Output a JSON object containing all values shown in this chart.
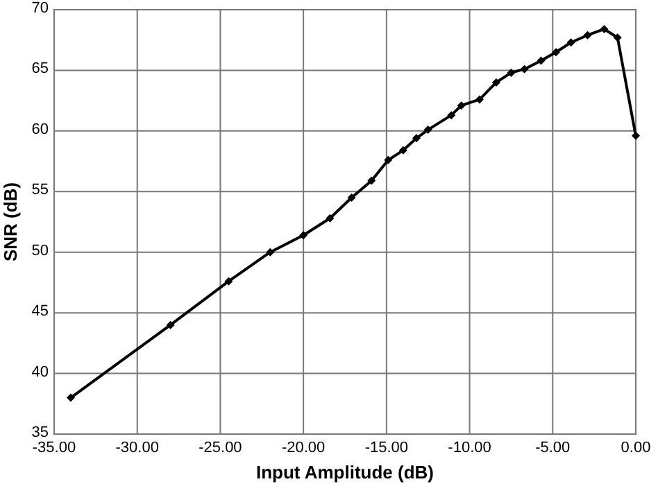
{
  "chart_data": {
    "type": "line",
    "xlabel": "Input Amplitude (dB)",
    "ylabel": "SNR (dB)",
    "x": [
      -34.0,
      -28.0,
      -24.5,
      -22.0,
      -20.0,
      -18.4,
      -17.1,
      -15.9,
      -14.9,
      -14.0,
      -13.2,
      -12.5,
      -11.1,
      -10.5,
      -9.4,
      -8.4,
      -7.5,
      -6.7,
      -5.7,
      -4.8,
      -3.9,
      -2.9,
      -1.9,
      -1.1,
      0.0
    ],
    "series": [
      {
        "color": "#000000",
        "values": [
          38.0,
          44.0,
          47.6,
          50.0,
          51.4,
          52.8,
          54.5,
          55.9,
          57.6,
          58.4,
          59.4,
          60.1,
          61.3,
          62.1,
          62.6,
          64.0,
          64.8,
          65.1,
          65.8,
          66.5,
          67.3,
          67.9,
          68.4,
          67.7,
          59.6
        ]
      }
    ],
    "xlim": [
      -35,
      0
    ],
    "ylim": [
      35,
      70
    ],
    "xticks": [
      {
        "value": -35,
        "label": "-35.00"
      },
      {
        "value": -30,
        "label": "-30.00"
      },
      {
        "value": -25,
        "label": "-25.00"
      },
      {
        "value": -20,
        "label": "-20.00"
      },
      {
        "value": -15,
        "label": "-15.00"
      },
      {
        "value": -10,
        "label": "-10.00"
      },
      {
        "value": -5,
        "label": "-5.00"
      },
      {
        "value": 0,
        "label": "0.00"
      }
    ],
    "yticks": [
      35,
      40,
      45,
      50,
      55,
      60,
      65,
      70
    ],
    "grid": true,
    "marker": "diamond",
    "line_style": "solid"
  }
}
